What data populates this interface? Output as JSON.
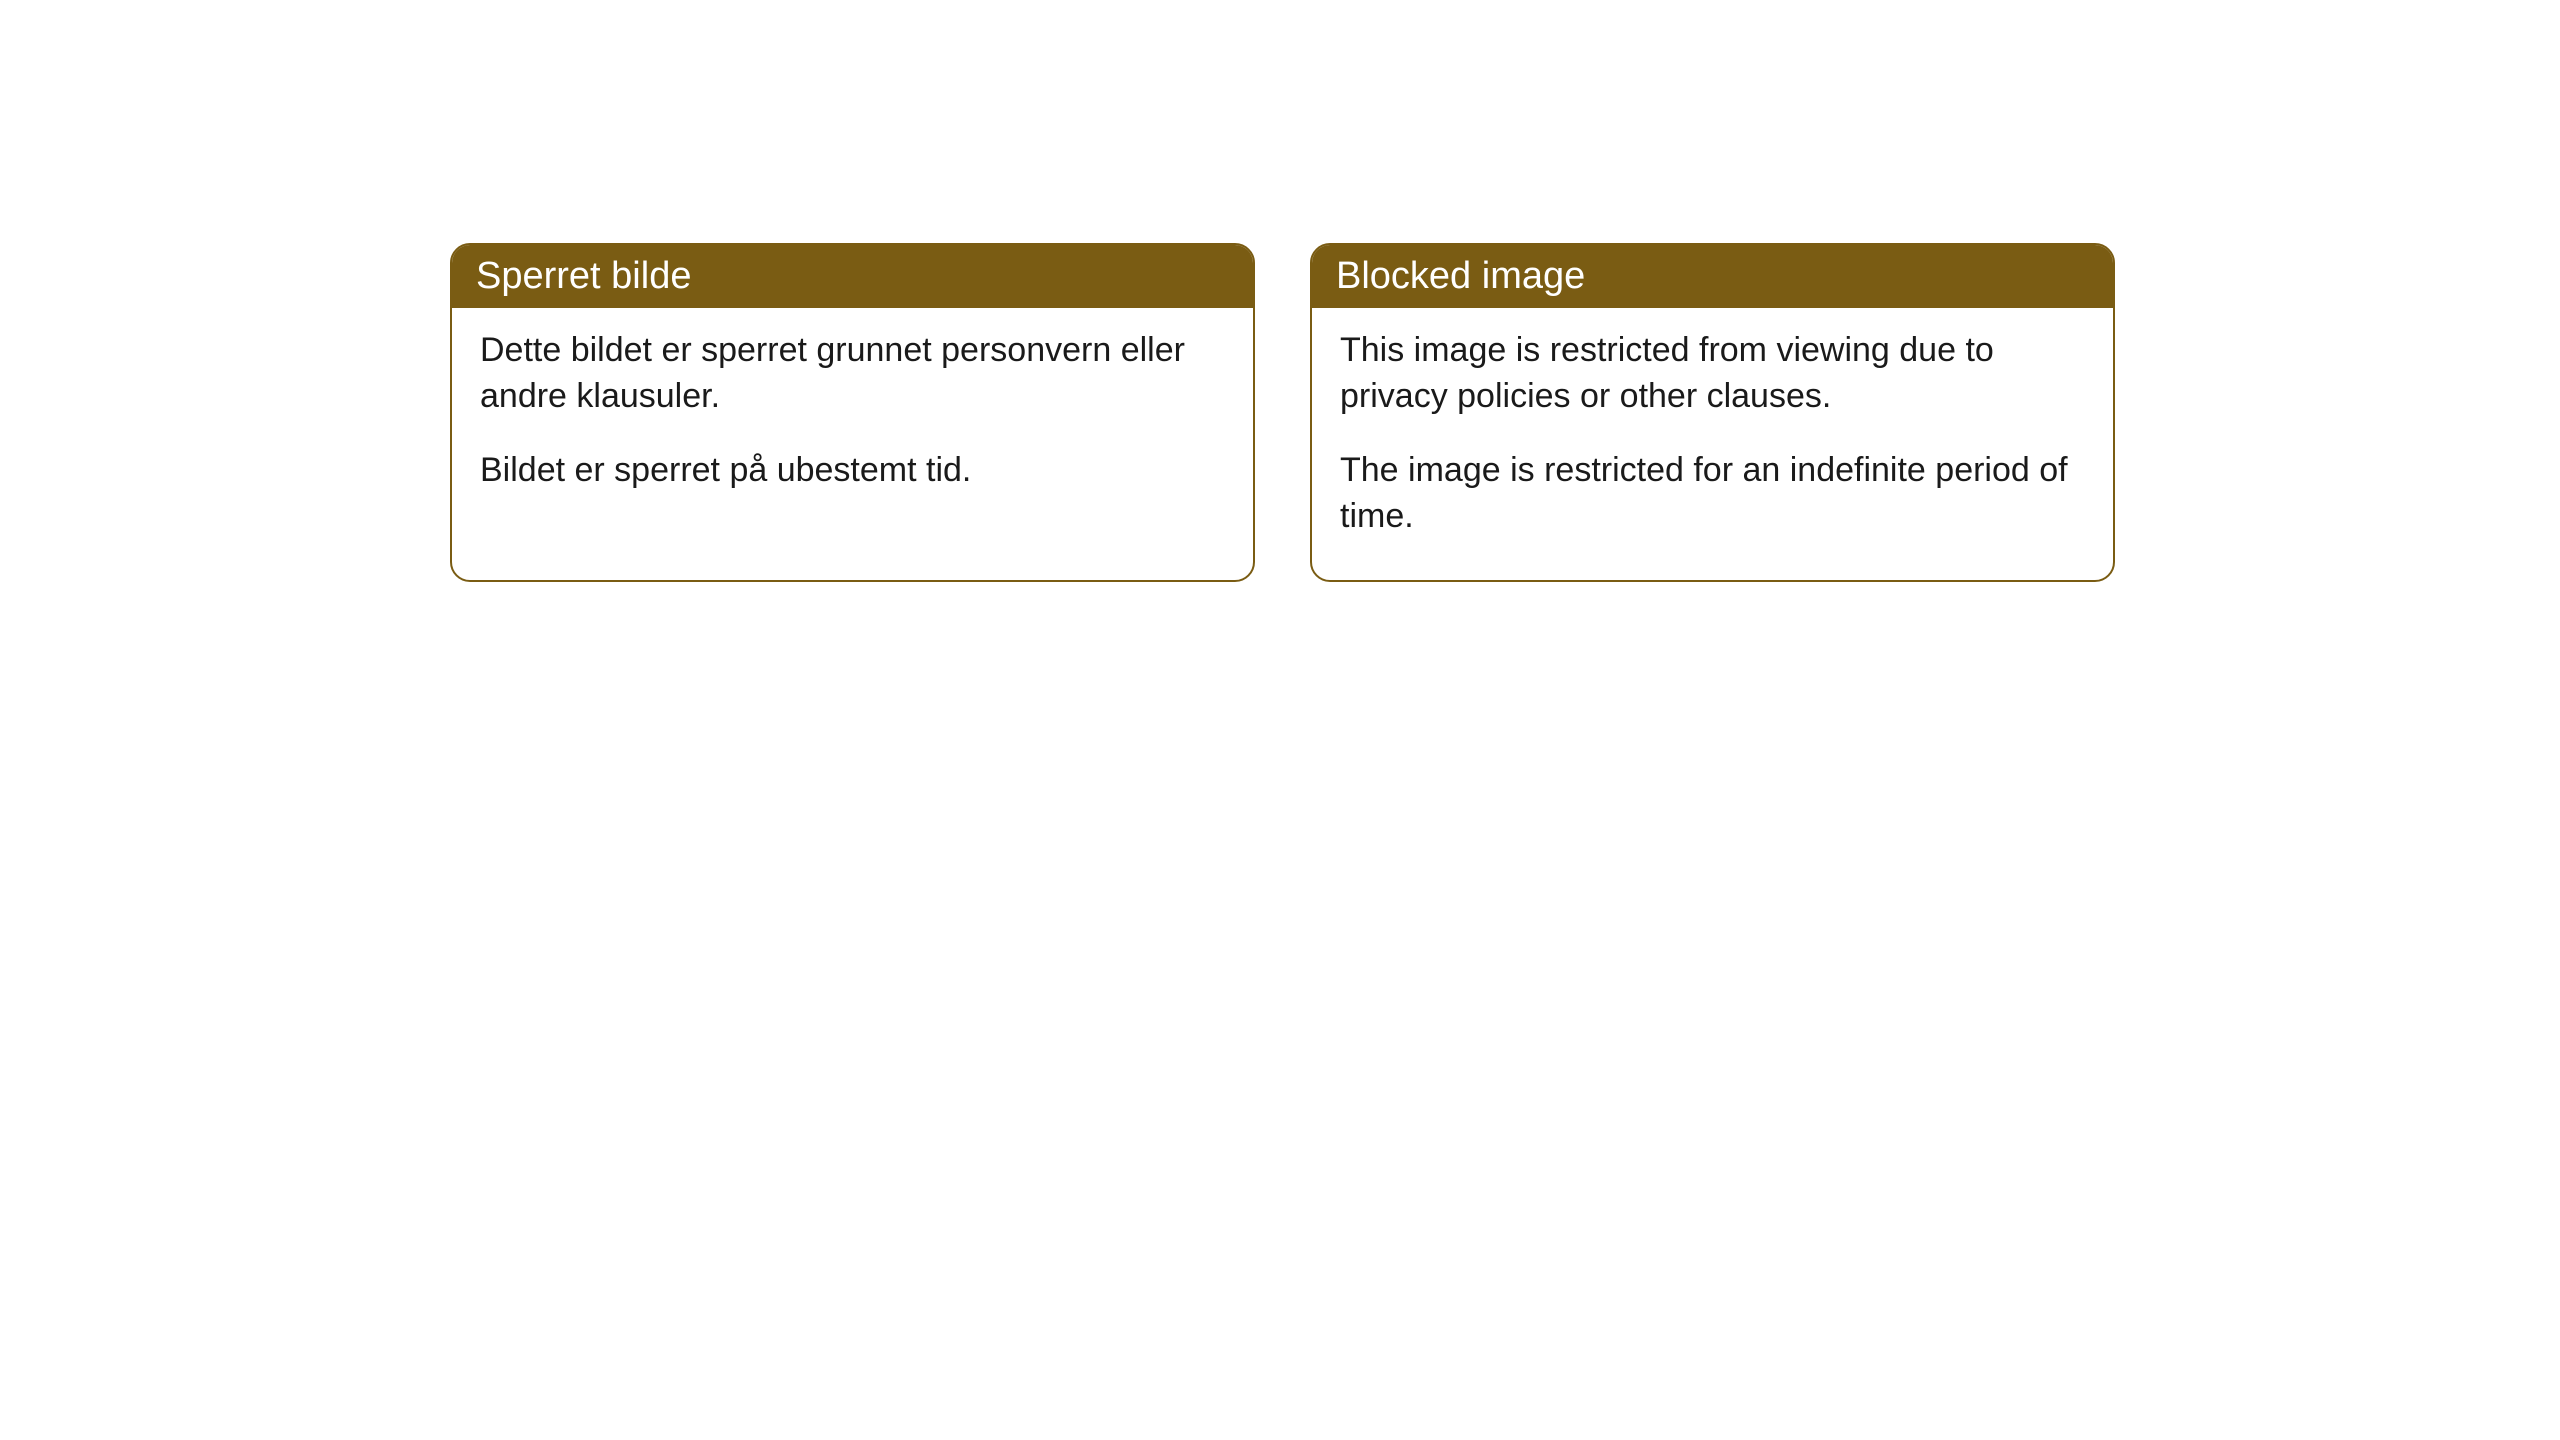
{
  "cards": [
    {
      "title": "Sperret bilde",
      "paragraph1": "Dette bildet er sperret grunnet personvern eller andre klausuler.",
      "paragraph2": "Bildet er sperret på ubestemt tid."
    },
    {
      "title": "Blocked image",
      "paragraph1": "This image is restricted from viewing due to privacy policies or other clauses.",
      "paragraph2": "The image is restricted for an indefinite period of time."
    }
  ],
  "style": {
    "header_bg_color": "#7a5c13",
    "header_text_color": "#ffffff",
    "border_color": "#7a5c13",
    "body_bg_color": "#ffffff",
    "body_text_color": "#1a1a1a",
    "border_radius": 20,
    "header_fontsize": 38,
    "body_fontsize": 34
  }
}
